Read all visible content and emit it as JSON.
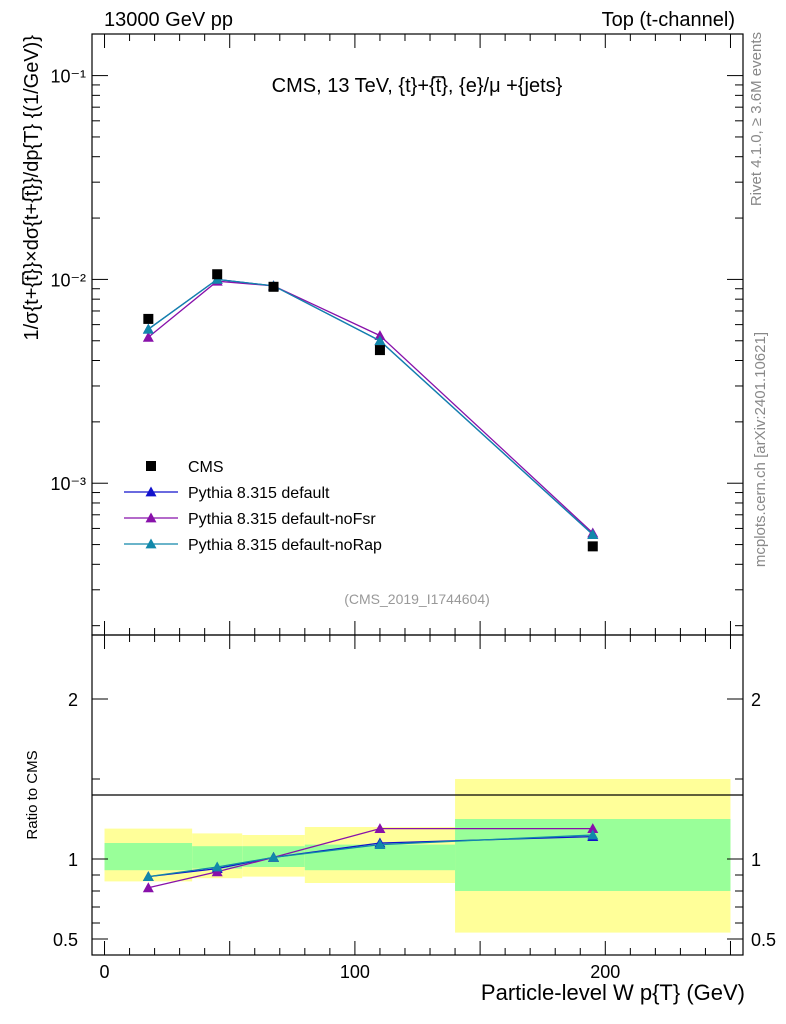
{
  "header": {
    "left": "13000 GeV pp",
    "right": "Top (t-channel)"
  },
  "side_text": {
    "top": "Rivet 4.1.0, ≥ 3.6M events",
    "bottom": "mcplots.cern.ch [arXiv:2401.10621]"
  },
  "chart_data": [
    {
      "type": "line",
      "title": "CMS, 13 TeV, {t}+{t̅}, {e}/μ +{jets}",
      "analysis_id": "(CMS_2019_I1744604)",
      "ylabel": "1/σ{t+{t̅}}×dσ{t+{t̅}}/dp{T}  {(1/GeV)}",
      "yscale": "log",
      "ylim": [
        0.00018,
        0.16
      ],
      "xlim": [
        -5,
        255
      ],
      "y_tick_labels": [
        "10⁻¹",
        "10⁻²",
        "10⁻³"
      ],
      "legend_position": "bottom-left",
      "legend": [
        "CMS",
        "Pythia 8.315 default",
        "Pythia 8.315 default-noFsr",
        "Pythia 8.315 default-noRap"
      ],
      "x": [
        17.5,
        45,
        67.5,
        110,
        195
      ],
      "data": {
        "name": "CMS",
        "values": [
          0.0064,
          0.0106,
          0.0092,
          0.0045,
          0.00049
        ],
        "bins": [
          [
            0,
            35
          ],
          [
            35,
            55
          ],
          [
            55,
            80
          ],
          [
            80,
            140
          ],
          [
            140,
            250
          ]
        ]
      },
      "series": [
        {
          "name": "Pythia 8.315 default",
          "color": "#1111cc",
          "values": [
            0.0057,
            0.01,
            0.0093,
            0.005,
            0.00056
          ]
        },
        {
          "name": "Pythia 8.315 default-noFsr",
          "color": "#8811aa",
          "values": [
            0.0052,
            0.0098,
            0.0093,
            0.0053,
            0.00057
          ]
        },
        {
          "name": "Pythia 8.315 default-noRap",
          "color": "#1188aa",
          "values": [
            0.0057,
            0.01,
            0.0093,
            0.005,
            0.00056
          ]
        }
      ]
    },
    {
      "type": "line",
      "ylabel": "Ratio to CMS",
      "xlabel": "Particle-level W p{T} (GeV)",
      "ylim": [
        0.4,
        2.4
      ],
      "xlim": [
        -5,
        255
      ],
      "y_ticks": [
        0.5,
        1,
        2
      ],
      "y_tick_labels": [
        "0.5",
        "1",
        "2"
      ],
      "x_ticks": [
        0,
        100,
        200
      ],
      "x_tick_labels": [
        "0",
        "100",
        "200"
      ],
      "bands": [
        {
          "x0": 0,
          "x1": 35,
          "stat": [
            0.93,
            1.1
          ],
          "total": [
            0.86,
            1.19
          ]
        },
        {
          "x0": 35,
          "x1": 55,
          "stat": [
            0.94,
            1.08
          ],
          "total": [
            0.88,
            1.16
          ]
        },
        {
          "x0": 55,
          "x1": 80,
          "stat": [
            0.95,
            1.08
          ],
          "total": [
            0.89,
            1.15
          ]
        },
        {
          "x0": 80,
          "x1": 140,
          "stat": [
            0.93,
            1.09
          ],
          "total": [
            0.85,
            1.2
          ]
        },
        {
          "x0": 140,
          "x1": 250,
          "stat": [
            0.8,
            1.25
          ],
          "total": [
            0.54,
            1.5
          ]
        }
      ],
      "series": [
        {
          "name": "Pythia 8.315 default",
          "color": "#1111cc",
          "values": [
            0.89,
            0.94,
            1.01,
            1.1,
            1.14
          ]
        },
        {
          "name": "Pythia 8.315 default-noFsr",
          "color": "#8811aa",
          "values": [
            0.82,
            0.92,
            1.01,
            1.19,
            1.19
          ]
        },
        {
          "name": "Pythia 8.315 default-noRap",
          "color": "#1188aa",
          "values": [
            0.89,
            0.95,
            1.01,
            1.09,
            1.15
          ]
        }
      ]
    }
  ]
}
